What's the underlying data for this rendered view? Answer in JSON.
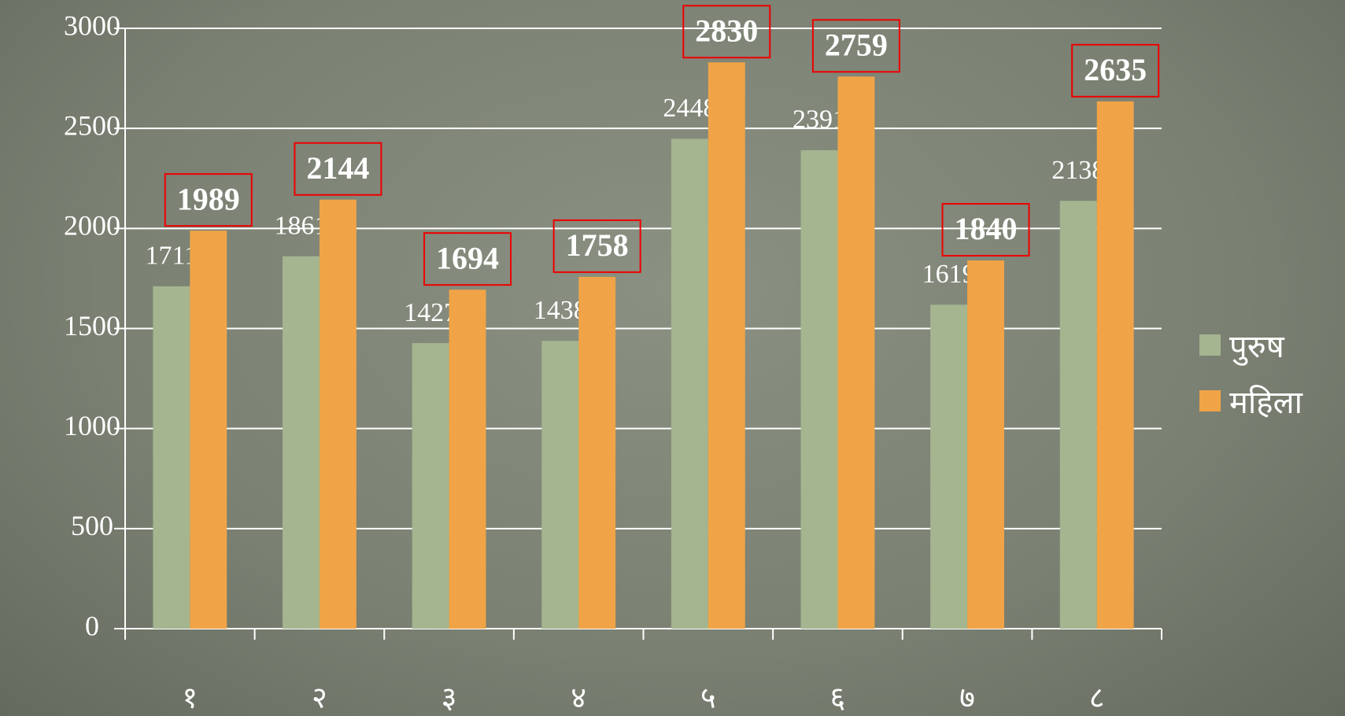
{
  "chart_data": {
    "type": "bar",
    "categories": [
      "१",
      "२",
      "३",
      "४",
      "५",
      "६",
      "७",
      "८"
    ],
    "series": [
      {
        "name": "पुरुष",
        "color": "#a4b590",
        "values": [
          1711,
          1861,
          1427,
          1438,
          2448,
          2391,
          1619,
          2138
        ]
      },
      {
        "name": "महिला",
        "color": "#f0a447",
        "values": [
          1989,
          2144,
          1694,
          1758,
          2830,
          2759,
          1840,
          2635
        ]
      }
    ],
    "ylim": [
      0,
      3000
    ],
    "yticks": [
      0,
      500,
      1000,
      1500,
      2000,
      2500,
      3000
    ],
    "grid": true,
    "legend": "right"
  }
}
